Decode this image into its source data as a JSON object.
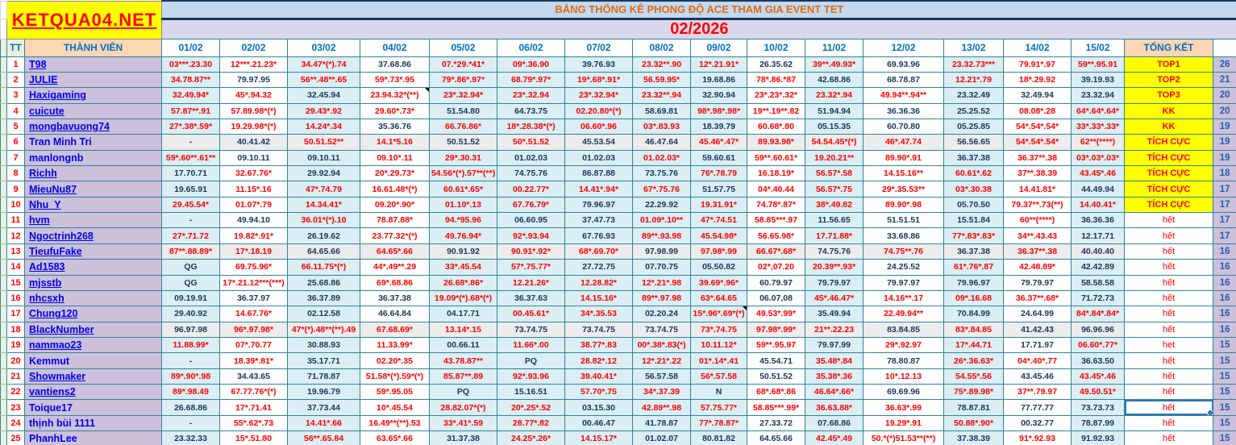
{
  "header": {
    "site": "KETQUA04.NET",
    "title": "BẢNG THỐNG KÊ PHONG ĐỘ ACE THAM GIA EVENT TET",
    "month": "02/2026",
    "col_tt": "TT",
    "col_member": "THÀNH VIÊN",
    "dates": [
      "01/02",
      "02/02",
      "03/02",
      "04/02",
      "05/02",
      "06/02",
      "07/02",
      "08/02",
      "09/02",
      "10/02",
      "11/02",
      "12/02",
      "13/02",
      "14/02",
      "15/02"
    ],
    "col_total": "TỔNG KẾT"
  },
  "colors": {
    "brand_bg": "#ffff00",
    "brand_text": "#ff0000",
    "title_text": "#e26b0a",
    "month_text": "#ff0000",
    "header_text": "#0070c0",
    "member_bg": "#ccc0da",
    "member_header_bg": "#fcd5b4",
    "cell_blue_bg": "#daeef3",
    "value_red": "#fe0000",
    "value_dark": "#17375e",
    "status_highlight_bg": "#ffff00",
    "grid": "#31859c"
  },
  "rows": [
    {
      "tt": 1,
      "name": "T98",
      "link": true,
      "values": [
        "03***.23.30",
        "12***.21.23*",
        "34.47*(*).74",
        "37.68.86",
        "07.*29.*41*",
        "09*.36.90",
        "39.76.93",
        "23.32**.90",
        "12*.21.91*",
        "26.35.62",
        "39**.49.93*",
        "69.93.96",
        "23.32.73***",
        "79.91*.97",
        "59**.95.91"
      ],
      "status": "TOP1",
      "highlight": true,
      "count": 26
    },
    {
      "tt": 2,
      "name": "JULIE",
      "link": true,
      "values": [
        "34.78.87**",
        "79.97.95",
        "56**.48**.65",
        "59*.73*.95",
        "79*.86*.97*",
        "68.79*.97*",
        "19*.68*.91*",
        "56.59.95*",
        "19.68.86",
        "78*.86.*87",
        "42.68.86",
        "68.78.87",
        "12.21*.79",
        "18*.29.92",
        "39.19.93"
      ],
      "status": "TOP2",
      "highlight": true,
      "count": 21
    },
    {
      "tt": 3,
      "name": "Haxigaming",
      "link": true,
      "values": [
        "32.49.94*",
        "45*.94.32",
        "32.45.94",
        "23.94.32*(**)",
        "23*.32.94*",
        "23*.32.94",
        "23*.32.94*",
        "23.32**.94",
        "32.90.94",
        "23*.23*.32*",
        "23.32*.94",
        "49.94**.94**",
        "23.32.49",
        "32.49.94",
        "23.32.94"
      ],
      "status": "TOP3",
      "highlight": true,
      "count": 20
    },
    {
      "tt": 4,
      "name": "cuicute",
      "link": true,
      "values": [
        "57.87**.91",
        "57.89.98*(*)",
        "29.43*.92",
        "29.60*.73*",
        "51.54.80",
        "64.73.75",
        "02.20.80*(*)",
        "58.69.81",
        "98*.98*.98*",
        "19**.19**.82",
        "51.94.94",
        "36.36.36",
        "25.25.52",
        "08.08*.28",
        "64*.64*.64*"
      ],
      "status": "KK",
      "highlight": true,
      "count": 20
    },
    {
      "tt": 5,
      "name": "mongbavuong74",
      "link": true,
      "values": [
        "27*.38*.59*",
        "19.29.98*(*)",
        "14.24*.34",
        "35.36.76",
        "66.76.86*",
        "18*.28.38*(*)",
        "06.60*.96",
        "03*.83.93",
        "18.39.79",
        "60.68*.80",
        "05.15.35",
        "60.70.80",
        "05.25.85",
        "54*.54*.54*",
        "33*.33*.33*"
      ],
      "status": "KK",
      "highlight": true,
      "count": 19
    },
    {
      "tt": 6,
      "name": "Tran  Minh  Tri",
      "link": false,
      "values": [
        "-",
        "40.41.42",
        "50.51.52**",
        "14.1*5.16",
        "50.51.52",
        "50*.51.52",
        "45.53.54",
        "46.47.64",
        "45.46*.47*",
        "89.93.98*",
        "54.54.45*(*)",
        "46*.47.74",
        "56.56.65",
        "54*.54*.54*",
        "62**(****)"
      ],
      "status": "TÍCH CỰC",
      "highlight": true,
      "count": 19
    },
    {
      "tt": 7,
      "name": "manlongnb",
      "link": false,
      "values": [
        "59*.60**.61**",
        "09.10.11",
        "09.10.11",
        "09.10*.11",
        "29*.30.31",
        "01.02.03",
        "01.02.03",
        "01.02.03*",
        "59.60.61",
        "59**.60.61*",
        "19.20.21**",
        "89.90*.91",
        "36.37.38",
        "36.37**.38",
        "03*.03*.03*"
      ],
      "status": "TÍCH CỰC",
      "highlight": true,
      "count": 19
    },
    {
      "tt": 8,
      "name": "Richh",
      "link": true,
      "values": [
        "17.70.71",
        "32.67.76*",
        "29.92.94",
        "20*.29.73*",
        "54.56*(*).57**(**)",
        "74.75.76",
        "86.87.88",
        "73.75.76",
        "76*.78.79",
        "16.18.19*",
        "56.57*.58",
        "14.15.16**",
        "60.61*.62",
        "37**.38.39",
        "43.45*.46"
      ],
      "status": "TÍCH CỰC",
      "highlight": true,
      "count": 18
    },
    {
      "tt": 9,
      "name": "MieuNu87",
      "link": true,
      "values": [
        "19.65.91",
        "11.15*.16",
        "47*.74.79",
        "16.61.48*(*)",
        "60.61*.65*",
        "00.22.77*",
        "14.41*.94*",
        "67*.75.76",
        "51.57.75",
        "04*.40.44",
        "56.57*.75",
        "29*.35.53**",
        "03*.30.38",
        "14.41.81*",
        "44.49.94"
      ],
      "status": "TÍCH CỰC",
      "highlight": true,
      "count": 17
    },
    {
      "tt": 10,
      "name": "Nhu_Y",
      "link": true,
      "values": [
        "29.45.54*",
        "01.07*.79",
        "14.34.41*",
        "09.20*.90*",
        "01.10*.13",
        "67.76.79*",
        "79.96.97",
        "22.29.92",
        "19.31.91*",
        "74.78*.87*",
        "38*.49.82",
        "89.90*.98",
        "05.70.50",
        "79.37**.73(**)",
        "14.40.41*"
      ],
      "status": "TÍCH CỰC",
      "highlight": true,
      "count": 17
    },
    {
      "tt": 11,
      "name": "hvm",
      "link": true,
      "values": [
        "-",
        "49.94.10",
        "36.01*(*).10",
        "78.87.88*",
        "94.*95.96",
        "06.60.95",
        "37.47.73",
        "01.09*.10**",
        "47*.74.51",
        "58.85***.97",
        "11.56.65",
        "51.51.51",
        "15.51.84",
        "60**(****)",
        "36.36.36"
      ],
      "status": "hết",
      "highlight": false,
      "count": 17
    },
    {
      "tt": 12,
      "name": "Ngoctrinh268",
      "link": true,
      "values": [
        "27*.71.72",
        "19.82*.91*",
        "26.19.62",
        "23.77.32*(*)",
        "49.76.94*",
        "92*.93.94",
        "67.76.93",
        "89**.93.98",
        "45.54.98*",
        "56.65.98*",
        "17.71.88*",
        "33.68.86",
        "77*.83*.83*",
        "34**.43.43",
        "12.17.71"
      ],
      "status": "hết",
      "highlight": false,
      "count": 17
    },
    {
      "tt": 13,
      "name": "TieufuFake",
      "link": true,
      "values": [
        "87**.88.89*",
        "17*.18.19",
        "64.65.66",
        "64.65*.66",
        "90.91.92",
        "90.91*.92*",
        "68*.69.70*",
        "97.98.99",
        "97.98*.99",
        "66.67*.68*",
        "74.75.76",
        "74.75**.76",
        "36.37.38",
        "36.37**.38",
        "40.40.40"
      ],
      "status": "hết",
      "highlight": false,
      "count": 16
    },
    {
      "tt": 14,
      "name": "Ad1583",
      "link": true,
      "values": [
        "QG",
        "69.75.96*",
        "66.11.75*(*)",
        "44*.49**.29",
        "33*.45.54",
        "57*.75.77*",
        "27.72.75",
        "07.70.75",
        "05.50.82",
        "02*,07.20",
        "20.39**.93*",
        "24.25.52",
        "61*.76*.87",
        "42.48.89*",
        "42.42.89"
      ],
      "status": "hết",
      "highlight": false,
      "count": 16
    },
    {
      "tt": 15,
      "name": "mjsstb",
      "link": true,
      "values": [
        "QG",
        "17*.21.12***(***)",
        "25.68.86",
        "69*.68.86",
        "26.68*.86*",
        "12.21.26*",
        "12.28.82*",
        "12*.21*.98",
        "39.69*.96*",
        "60.79.97",
        "79.79.97",
        "79.97.97",
        "79.96.97",
        "79.79.97",
        "58.58.58"
      ],
      "status": "hết",
      "highlight": false,
      "count": 16
    },
    {
      "tt": 16,
      "name": "nhcsxh",
      "link": true,
      "values": [
        "09.19.91",
        "36.37.97",
        "36.37.89",
        "36.37.38",
        "19.09*(*).68*(*)",
        "36.37.63",
        "14.15.16*",
        "89**.97.98",
        "63*.64.65",
        "06.07,08",
        "45*.46.47*",
        "14.16**.17",
        "09*.16.68",
        "36.37**.68*",
        "71.72.73"
      ],
      "status": "hết",
      "highlight": false,
      "count": 16
    },
    {
      "tt": 17,
      "name": "Chung120",
      "link": true,
      "values": [
        "29.40.92",
        "14.67.76*",
        "02.12.58",
        "46.64.84",
        "04.17.71",
        "00.45.61*",
        "34*.35.53",
        "02.20.24",
        "15*.96*.69*(*)",
        "49.53*.99*",
        "35.49.94",
        "22.49.94**",
        "70.84.99",
        "24.64.99",
        "84*.84*.84*"
      ],
      "status": "hết",
      "highlight": false,
      "count": 16
    },
    {
      "tt": 18,
      "name": "BlackNumber",
      "link": true,
      "values": [
        "96.97.98",
        "96*.97.98*",
        "47*(*).48**(**).49",
        "67.68.69*",
        "13.14*.15",
        "73.74.75",
        "73.74.75",
        "73.74.75",
        "73*.74.75",
        "97.98*.99*",
        "21**.22.23",
        "83.84.85",
        "83*.84.85",
        "41.42.43",
        "96.96.96"
      ],
      "status": "hết",
      "highlight": false,
      "count": 16
    },
    {
      "tt": 19,
      "name": "nammao23",
      "link": true,
      "values": [
        "11.88.99*",
        "07*.70.77",
        "30.88.93",
        "11.33.99*",
        "00.66.11",
        "11.66*.00",
        "38.77*.83",
        "00*.38*.83(*)",
        "10.11.12*",
        "59**.95.97",
        "79.97.99",
        "29*.92.97",
        "17*.44.71",
        "17.71.97",
        "06.60*.77*"
      ],
      "status": "het",
      "highlight": false,
      "count": 15
    },
    {
      "tt": 20,
      "name": "Kemmut",
      "link": false,
      "values": [
        "-",
        "18.39*.81*",
        "35.17.71",
        "02.20*.35",
        "43.78.87**",
        "PQ",
        "28.82*.12",
        "12*.21*.22",
        "01*.14*.41",
        "45.54.71",
        "35.48*.84",
        "78.80.87",
        "26*.36.63*",
        "04*.40*.77",
        "36.63.50"
      ],
      "status": "hết",
      "highlight": false,
      "count": 15
    },
    {
      "tt": 21,
      "name": "Showmaker",
      "link": true,
      "values": [
        "89*.90*.98",
        "34.43.65",
        "71.78.87",
        "51.58*(*).59*(*)",
        "85.87**.89",
        "92*.93.96",
        "39.40.41*",
        "56.57.58",
        "56*.57.58",
        "50.51.52",
        "35.38*.36",
        "10*.12.13",
        "54.55*.56",
        "43.45.46",
        "43.45*.46"
      ],
      "status": "hết",
      "highlight": false,
      "count": 15
    },
    {
      "tt": 22,
      "name": "vantiens2",
      "link": true,
      "values": [
        "89*.98.49",
        "67.77.76*(*)",
        "19.96.79",
        "59*.95.05",
        "PQ",
        "15.16.51",
        "57.70*.75",
        "34*.37.39",
        "N",
        "68*.68*.86",
        "46.64*.66*",
        "69.69.96",
        "75*.89.98*",
        "37**.79.97",
        "49.50.51*"
      ],
      "status": "hết",
      "highlight": false,
      "count": 15
    },
    {
      "tt": 23,
      "name": "Toique17",
      "link": false,
      "values": [
        "26.68.86",
        "17*.71.41",
        "37.73.44",
        "10*.45.54",
        "28.82.07*(*)",
        "20*.25*.52",
        "03.15.30",
        "42.89**.98",
        "57.75.77*",
        "58.85***.99*",
        "36.63.88*",
        "36.63*.99",
        "78.87.81",
        "77.77.77",
        "73.73.73"
      ],
      "status": "hết",
      "highlight": false,
      "count": 15
    },
    {
      "tt": 24,
      "name": "thịnh bùi 1111",
      "link": false,
      "values": [
        "-",
        "55*.62*.73",
        "14.41*.66",
        "16.49**(**).53",
        "33*.41*.59",
        "28.77*.82",
        "00.46.47",
        "41.78.87",
        "77*.78.87*",
        "27.33.72",
        "07.68.86",
        "19.29*.91",
        "50.88*.90*",
        "00.32.77",
        "78.87.99"
      ],
      "status": "hết",
      "highlight": false,
      "count": 15
    },
    {
      "tt": 25,
      "name": "PhanhLee",
      "link": false,
      "values": [
        "23.32.33",
        "15*.51.80",
        "56**.65.84",
        "63.65*.66",
        "31.37.38",
        "24.25*.26*",
        "14.15.17*",
        "01.02.07",
        "80.81.82",
        "64.65.66",
        "42.45*.49",
        "50.*(*)51.53**(**)",
        "37.38.39",
        "91*.92.93",
        "91.92.93"
      ],
      "status": "hết",
      "highlight": false,
      "count": 15
    }
  ],
  "comment_cells": [
    {
      "row_tt": 3,
      "date": "04/02"
    },
    {
      "row_tt": 17,
      "date": "09/02"
    }
  ],
  "selection": {
    "row_tt": 23,
    "column": "status"
  }
}
